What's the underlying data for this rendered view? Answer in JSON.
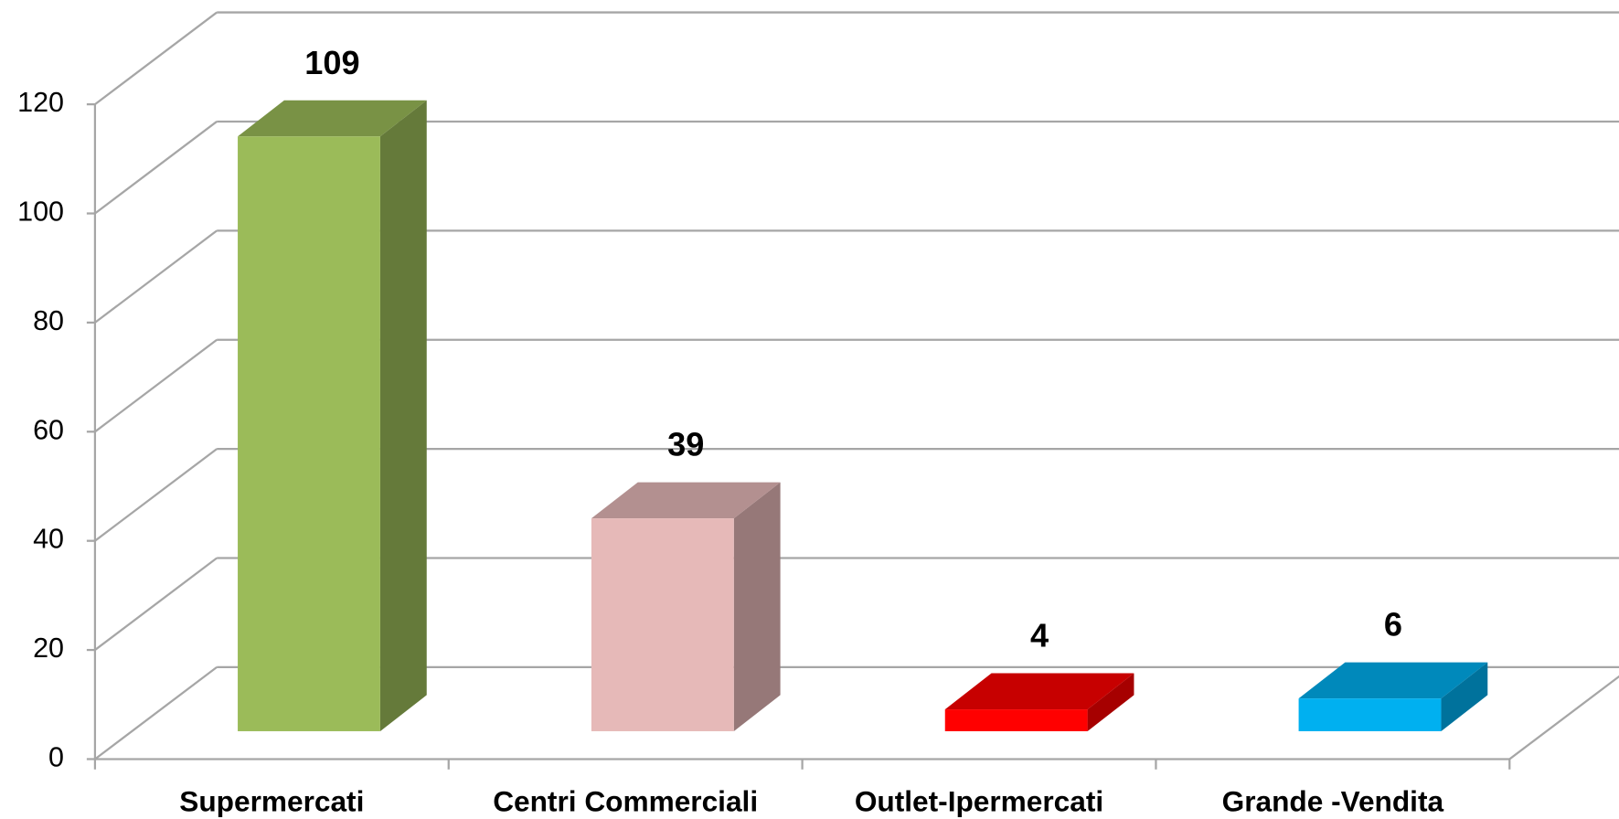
{
  "chart_data": {
    "type": "bar3d",
    "categories": [
      "Supermercati",
      "Centri Commerciali",
      "Outlet-Ipermercati",
      "Grande -Vendita"
    ],
    "values": [
      109,
      39,
      4,
      6
    ],
    "colors": [
      "#9bbb59",
      "#e6b9b8",
      "#ff0000",
      "#00b0f0"
    ],
    "ylim": [
      0,
      120
    ],
    "yticks": [
      0,
      20,
      40,
      60,
      80,
      100,
      120
    ],
    "grid": true
  }
}
